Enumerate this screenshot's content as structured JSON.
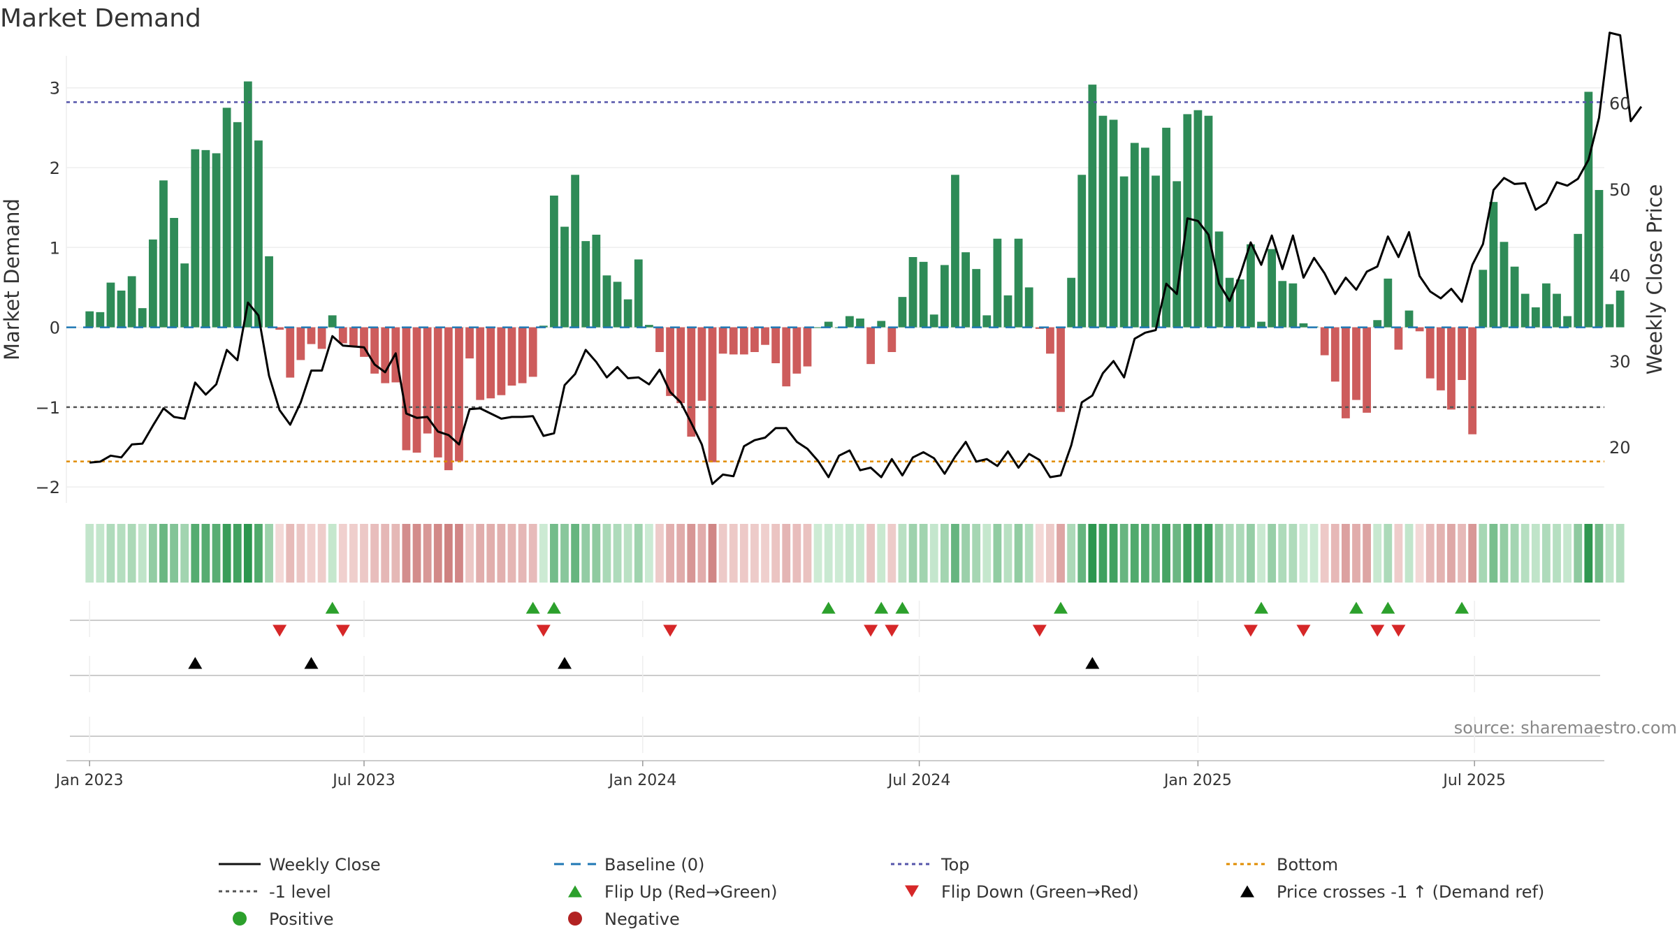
{
  "chart_data": {
    "type": "bar",
    "title": "Market Demand",
    "ylabel": "Market Demand",
    "y2label": "Weekly Close Price",
    "ylim": [
      -2.2,
      3.4
    ],
    "y2lim": [
      13.5,
      65.5
    ],
    "yticks": [
      3,
      2,
      1,
      0,
      -1,
      -2
    ],
    "ytick_labels": [
      "3",
      "2",
      "1",
      "0",
      "−1",
      "−2"
    ],
    "y2ticks": [
      60,
      50,
      40,
      30,
      20
    ],
    "y2tick_labels": [
      "60",
      "50",
      "40",
      "30",
      "20"
    ],
    "xlim": [
      -2.2,
      143.5
    ],
    "x_ticks": [
      0,
      26,
      52.4,
      78.6,
      105,
      131.2
    ],
    "x_tick_labels": [
      "Jan 2023",
      "Jul 2023",
      "Jan 2024",
      "Jul 2024",
      "Jan 2025",
      "Jul 2025"
    ],
    "levels": {
      "top": 2.82,
      "minus_one": -1.0,
      "bottom": -1.68,
      "baseline": 0
    },
    "colors": {
      "positive_bar": "#2e8b57",
      "negative_bar": "#cd5c5c",
      "price_line": "#000000",
      "baseline": "#1f77b4",
      "top": "#5555aa",
      "minus_one": "#555555",
      "bottom": "#e08c00",
      "flip_up": "#2ca02c",
      "flip_down": "#d62728",
      "cross": "#000000",
      "positive_dot": "#2ca02c",
      "negative_dot": "#b22222"
    },
    "demand": [
      0.2,
      0.19,
      0.56,
      0.46,
      0.64,
      0.24,
      1.1,
      1.84,
      1.37,
      0.8,
      2.23,
      2.22,
      2.18,
      2.75,
      2.57,
      3.08,
      2.34,
      0.89,
      -0.03,
      -0.63,
      -0.41,
      -0.21,
      -0.27,
      0.15,
      -0.2,
      -0.24,
      -0.37,
      -0.58,
      -0.7,
      -0.69,
      -1.54,
      -1.57,
      -1.33,
      -1.63,
      -1.79,
      -1.68,
      -0.39,
      -0.91,
      -0.89,
      -0.85,
      -0.73,
      -0.7,
      -0.62,
      0.02,
      1.65,
      1.26,
      1.91,
      1.08,
      1.16,
      0.65,
      0.57,
      0.35,
      0.85,
      0.03,
      -0.31,
      -0.86,
      -0.95,
      -1.37,
      -0.92,
      -1.69,
      -0.33,
      -0.34,
      -0.34,
      -0.31,
      -0.22,
      -0.45,
      -0.74,
      -0.58,
      -0.49,
      0.0,
      0.07,
      0.0,
      0.14,
      0.11,
      -0.46,
      0.08,
      -0.31,
      0.38,
      0.88,
      0.82,
      0.16,
      0.78,
      1.91,
      0.94,
      0.73,
      0.15,
      1.11,
      0.4,
      1.11,
      0.5,
      -0.02,
      -0.33,
      -1.06,
      0.62,
      1.91,
      3.04,
      2.65,
      2.6,
      1.89,
      2.31,
      2.25,
      1.9,
      2.5,
      1.83,
      2.67,
      2.72,
      2.65,
      1.2,
      0.62,
      0.6,
      1.04,
      0.07,
      0.98,
      0.58,
      0.55,
      0.05,
      0.01,
      -0.35,
      -0.68,
      -1.14,
      -0.91,
      -1.07,
      0.09,
      0.61,
      -0.28,
      0.21,
      -0.05,
      -0.64,
      -0.79,
      -1.03,
      -0.66,
      -1.34,
      0.72,
      1.57,
      1.07,
      0.76,
      0.42,
      0.25,
      0.55,
      0.42,
      0.14,
      1.17,
      2.95,
      1.72,
      0.29,
      0.46
    ],
    "price": [
      18.2,
      18.3,
      19.0,
      18.8,
      20.3,
      20.4,
      22.5,
      24.5,
      23.5,
      23.3,
      27.5,
      26.1,
      27.3,
      31.3,
      30.1,
      36.8,
      35.3,
      28.3,
      24.3,
      22.6,
      25.2,
      28.9,
      28.9,
      32.9,
      31.8,
      31.7,
      31.6,
      29.6,
      28.7,
      30.9,
      23.9,
      23.4,
      23.5,
      21.8,
      21.4,
      20.3,
      24.4,
      24.5,
      23.9,
      23.3,
      23.5,
      23.5,
      23.6,
      21.3,
      21.6,
      27.2,
      28.5,
      31.3,
      29.9,
      28.1,
      29.3,
      28.0,
      28.1,
      27.3,
      29.0,
      26.4,
      25.2,
      22.8,
      20.3,
      15.7,
      16.8,
      16.6,
      20.1,
      20.8,
      21.1,
      22.2,
      22.2,
      20.6,
      19.8,
      18.4,
      16.5,
      19.0,
      19.6,
      17.3,
      17.6,
      16.5,
      18.6,
      16.7,
      18.8,
      19.4,
      18.7,
      16.9,
      18.9,
      20.6,
      18.3,
      18.6,
      17.8,
      19.5,
      17.6,
      19.2,
      18.5,
      16.5,
      16.7,
      20.2,
      25.2,
      26.0,
      28.6,
      30.0,
      28.1,
      32.6,
      33.3,
      33.6,
      39.0,
      37.8,
      46.6,
      46.3,
      44.7,
      39.0,
      37.0,
      40.0,
      43.8,
      41.2,
      44.6,
      40.7,
      44.6,
      39.7,
      42.0,
      40.2,
      37.8,
      39.7,
      38.3,
      40.4,
      41.0,
      44.5,
      42.1,
      45.0,
      39.9,
      38.1,
      37.3,
      38.4,
      36.9,
      41.2,
      43.6,
      49.9,
      51.3,
      50.6,
      50.7,
      47.6,
      48.4,
      50.8,
      50.4,
      51.2,
      53.4,
      58.3,
      68.2,
      67.9,
      57.9,
      59.6
    ],
    "flip_up_x": [
      23,
      42,
      44,
      70,
      75,
      77,
      92,
      111,
      120,
      123,
      130
    ],
    "flip_down_x": [
      18,
      24,
      43,
      55,
      74,
      76,
      90,
      110,
      115,
      122,
      124
    ],
    "cross_up_x": [
      10,
      21,
      45,
      95
    ],
    "source": "source: sharemaestro.com",
    "legend": [
      {
        "label": "Weekly Close",
        "marker": "solid-line",
        "color": "#111111"
      },
      {
        "label": "Baseline (0)",
        "marker": "dashed-line",
        "color": "#1f77b4"
      },
      {
        "label": "Top",
        "marker": "dotted-line",
        "color": "#5555aa"
      },
      {
        "label": "Bottom",
        "marker": "dotted-line",
        "color": "#e08c00"
      },
      {
        "label": "-1 level",
        "marker": "dotted-line",
        "color": "#555555"
      },
      {
        "label": "Flip Up (Red→Green)",
        "marker": "triangle-up",
        "color": "#2ca02c"
      },
      {
        "label": "Flip Down (Green→Red)",
        "marker": "triangle-down",
        "color": "#d62728"
      },
      {
        "label": "Price crosses -1 ↑ (Demand ref)",
        "marker": "triangle-up",
        "color": "#000000"
      },
      {
        "label": "Positive",
        "marker": "circle",
        "color": "#2ca02c"
      },
      {
        "label": "Negative",
        "marker": "circle",
        "color": "#b22222"
      }
    ]
  }
}
